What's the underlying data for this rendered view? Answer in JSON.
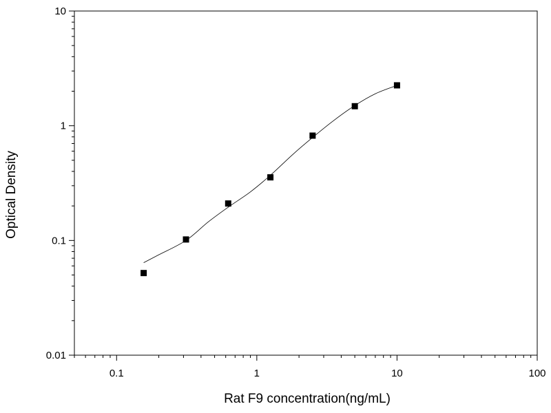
{
  "chart_data": {
    "type": "scatter",
    "title": "",
    "xlabel": "Rat  F9 concentration(ng/mL)",
    "ylabel": "Optical Density",
    "xscale": "log",
    "yscale": "log",
    "xlim": [
      0.05,
      100
    ],
    "ylim": [
      0.01,
      10
    ],
    "grid": false,
    "legend": "none",
    "x_ticks": [
      {
        "value": 0.1,
        "label": "0.1"
      },
      {
        "value": 1,
        "label": "1"
      },
      {
        "value": 10,
        "label": "10"
      },
      {
        "value": 100,
        "label": "100"
      }
    ],
    "y_ticks": [
      {
        "value": 0.01,
        "label": "0.01"
      },
      {
        "value": 0.1,
        "label": "0.1"
      },
      {
        "value": 1,
        "label": "1"
      },
      {
        "value": 10,
        "label": "10"
      }
    ],
    "series": [
      {
        "x": [
          0.156,
          0.3125,
          0.625,
          1.25,
          2.5,
          5,
          10
        ],
        "y": [
          0.052,
          0.102,
          0.21,
          0.355,
          0.82,
          1.48,
          2.25
        ]
      }
    ],
    "fit_curve": {
      "x": [
        0.156,
        0.2,
        0.3125,
        0.45,
        0.625,
        0.9,
        1.25,
        1.8,
        2.5,
        3.5,
        5,
        7,
        10
      ],
      "y": [
        0.064,
        0.075,
        0.1,
        0.145,
        0.195,
        0.265,
        0.37,
        0.56,
        0.79,
        1.1,
        1.5,
        1.9,
        2.25
      ]
    },
    "colors": {
      "marker": "#000000",
      "line": "#000000",
      "axis": "#000000"
    }
  }
}
